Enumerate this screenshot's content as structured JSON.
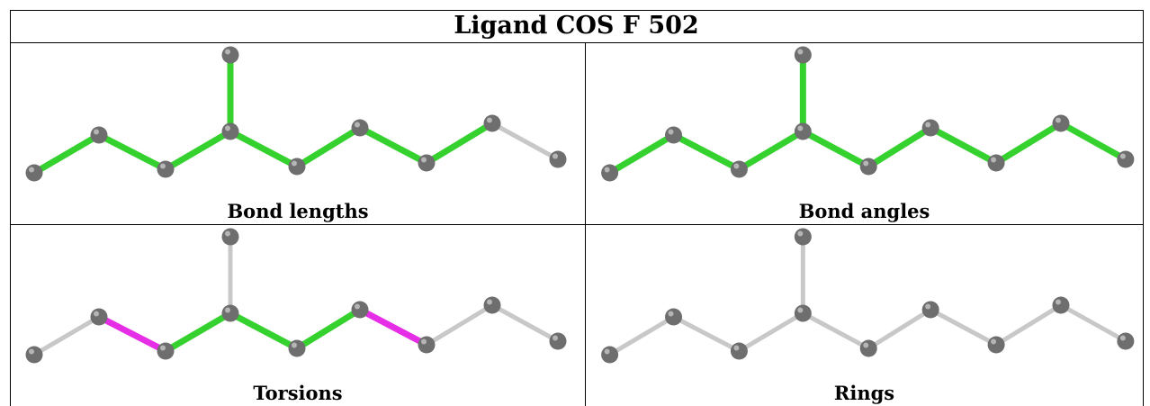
{
  "title": "Ligand COS F 502",
  "panels": [
    {
      "caption": "Bond lengths",
      "bonds": [
        "green",
        "green",
        "green",
        "green",
        "green",
        "green",
        "green",
        "green",
        "gray"
      ]
    },
    {
      "caption": "Bond angles",
      "bonds": [
        "green",
        "green",
        "green",
        "green",
        "green",
        "green",
        "green",
        "green",
        "green"
      ]
    },
    {
      "caption": "Torsions",
      "bonds": [
        "gray",
        "magenta",
        "green",
        "gray",
        "green",
        "green",
        "magenta",
        "gray",
        "gray"
      ]
    },
    {
      "caption": "Rings",
      "bonds": [
        "gray",
        "gray",
        "gray",
        "gray",
        "gray",
        "gray",
        "gray",
        "gray",
        "gray"
      ]
    }
  ],
  "colors": {
    "green": "#35d12e",
    "magenta": "#e62ee6",
    "gray": "#c8c8c8",
    "atom": "#6e6e6e"
  }
}
